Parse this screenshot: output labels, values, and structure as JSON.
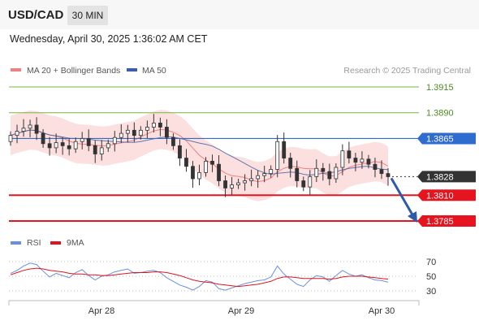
{
  "header": {
    "pair": "USD/CAD",
    "timeframe": "30 MIN"
  },
  "datetime": "Wednesday, April 30, 2025 1:36:02 AM CET",
  "legend": {
    "bb_label": "MA 20 + Bollinger Bands",
    "ma50_label": "MA 50",
    "credit": "Research © 2025 Trading Central"
  },
  "rsi_legend": {
    "rsi_label": "RSI",
    "ma_label": "9MA"
  },
  "colors": {
    "green": "#76b740",
    "blue": "#2e6cd0",
    "red": "#e6141e",
    "candle": "#333333",
    "band": "#fbd4d4",
    "ma20": "#f08080",
    "ma50": "#3b5ca8",
    "rsi": "#6a8fe0",
    "rsi_ma": "#e0141e"
  },
  "chart_data": [
    {
      "type": "candlestick",
      "title": "USD/CAD",
      "x_ticks": [
        "Apr 28",
        "Apr 29",
        "Apr 30"
      ],
      "levels": [
        {
          "value": 1.3915,
          "label": "1.3915",
          "kind": "resistance"
        },
        {
          "value": 1.389,
          "label": "1.3890",
          "kind": "resistance"
        },
        {
          "value": 1.3865,
          "label": "1.3865",
          "kind": "pivot"
        },
        {
          "value": 1.3828,
          "label": "1.3828",
          "kind": "last"
        },
        {
          "value": 1.381,
          "label": "1.3810",
          "kind": "support"
        },
        {
          "value": 1.3785,
          "label": "1.3785",
          "kind": "support"
        }
      ],
      "close_path": [
        1.3868,
        1.3872,
        1.3875,
        1.3878,
        1.387,
        1.386,
        1.3856,
        1.3861,
        1.3858,
        1.3855,
        1.3862,
        1.3865,
        1.3858,
        1.385,
        1.3856,
        1.386,
        1.3866,
        1.387,
        1.3873,
        1.3868,
        1.3873,
        1.3876,
        1.388,
        1.3876,
        1.3866,
        1.3858,
        1.3846,
        1.3838,
        1.3826,
        1.3832,
        1.3843,
        1.384,
        1.3824,
        1.3817,
        1.382,
        1.3822,
        1.3824,
        1.3826,
        1.3829,
        1.3831,
        1.3835,
        1.3862,
        1.3846,
        1.3836,
        1.3824,
        1.3818,
        1.3828,
        1.3836,
        1.3833,
        1.3826,
        1.3837,
        1.3853,
        1.3846,
        1.3842,
        1.3845,
        1.384,
        1.3835,
        1.3831,
        1.3828
      ],
      "projection": {
        "from": 1.3828,
        "to": 1.3785
      },
      "ylim": [
        1.3775,
        1.3925
      ]
    },
    {
      "type": "line",
      "title": "RSI",
      "y_ticks": [
        70,
        50,
        30
      ],
      "ylim": [
        20,
        80
      ],
      "series": [
        {
          "name": "RSI",
          "values": [
            54,
            58,
            64,
            68,
            66,
            57,
            49,
            54,
            51,
            48,
            55,
            59,
            51,
            45,
            50,
            52,
            56,
            58,
            60,
            54,
            55,
            57,
            58,
            55,
            48,
            43,
            38,
            35,
            31,
            36,
            44,
            42,
            33,
            31,
            34,
            37,
            40,
            42,
            44,
            45,
            49,
            64,
            53,
            46,
            39,
            36,
            45,
            51,
            49,
            43,
            51,
            58,
            53,
            50,
            52,
            48,
            45,
            44,
            42
          ]
        },
        {
          "name": "9MA",
          "values": [
            52,
            55,
            58,
            60,
            61,
            60,
            58,
            57,
            56,
            54,
            53,
            53,
            52,
            52,
            51,
            51,
            52,
            53,
            54,
            55,
            55,
            55,
            56,
            56,
            55,
            53,
            51,
            48,
            45,
            43,
            42,
            41,
            39,
            38,
            37,
            36,
            37,
            38,
            39,
            41,
            43,
            47,
            49,
            49,
            48,
            47,
            47,
            47,
            47,
            46,
            47,
            49,
            50,
            50,
            50,
            49,
            48,
            47,
            46
          ]
        }
      ]
    }
  ]
}
